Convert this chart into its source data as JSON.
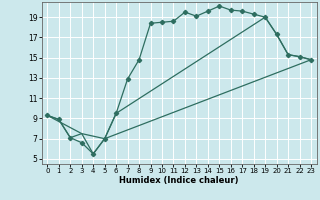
{
  "xlabel": "Humidex (Indice chaleur)",
  "bg_color": "#cce8ec",
  "grid_color": "#ffffff",
  "line_color": "#2e6e60",
  "xlim": [
    -0.5,
    23.5
  ],
  "ylim": [
    4.5,
    20.5
  ],
  "xticks": [
    0,
    1,
    2,
    3,
    4,
    5,
    6,
    7,
    8,
    9,
    10,
    11,
    12,
    13,
    14,
    15,
    16,
    17,
    18,
    19,
    20,
    21,
    22,
    23
  ],
  "yticks": [
    5,
    7,
    9,
    11,
    13,
    15,
    17,
    19
  ],
  "curve1_x": [
    0,
    1,
    2,
    3,
    4,
    5,
    6,
    7,
    8,
    9,
    10,
    11,
    12,
    13,
    14,
    15,
    16,
    17,
    18,
    19,
    20,
    21,
    22,
    23
  ],
  "curve1_y": [
    9.3,
    8.9,
    7.1,
    6.6,
    5.5,
    7.0,
    9.5,
    12.9,
    14.8,
    18.4,
    18.5,
    18.6,
    19.5,
    19.1,
    19.6,
    20.1,
    19.7,
    19.6,
    19.3,
    19.0,
    17.3,
    15.3,
    15.1,
    14.8
  ],
  "curve2_x": [
    0,
    1,
    2,
    3,
    5,
    6,
    19,
    20,
    21,
    22,
    23
  ],
  "curve2_y": [
    9.3,
    8.9,
    7.1,
    7.5,
    7.0,
    9.5,
    19.0,
    17.3,
    15.3,
    15.1,
    14.8
  ],
  "curve3_x": [
    0,
    3,
    4,
    5,
    23
  ],
  "curve3_y": [
    9.3,
    7.5,
    5.5,
    7.0,
    14.8
  ]
}
